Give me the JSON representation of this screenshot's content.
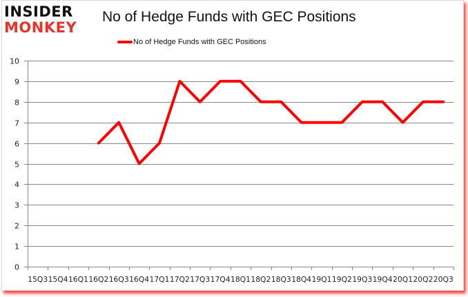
{
  "brand": {
    "line1": "INSIDER",
    "line2": "MONKEY",
    "line1_color": "#111111",
    "line2_color": "#e0362c"
  },
  "chart_data": {
    "type": "line",
    "title": "No of Hedge Funds with GEC Positions",
    "xlabel": "",
    "ylabel": "",
    "ylim": [
      0,
      10
    ],
    "yticks": [
      0,
      1,
      2,
      3,
      4,
      5,
      6,
      7,
      8,
      9,
      10
    ],
    "grid": true,
    "legend_position": "top",
    "categories": [
      "15Q3",
      "15Q4",
      "16Q1",
      "16Q2",
      "16Q3",
      "16Q4",
      "17Q1",
      "17Q2",
      "17Q3",
      "17Q4",
      "18Q1",
      "18Q2",
      "18Q3",
      "18Q4",
      "19Q1",
      "19Q2",
      "19Q3",
      "19Q4",
      "20Q1",
      "20Q2",
      "20Q3"
    ],
    "series": [
      {
        "name": "No of Hedge Funds with GEC Positions",
        "color": "#ff0000",
        "values": [
          null,
          null,
          null,
          6,
          7,
          5,
          6,
          9,
          8,
          9,
          9,
          8,
          8,
          7,
          7,
          7,
          8,
          8,
          7,
          8,
          8
        ]
      }
    ]
  },
  "colors": {
    "line": "#ff0000",
    "grid": "#878787",
    "frame_shadow": "#ff0000"
  }
}
